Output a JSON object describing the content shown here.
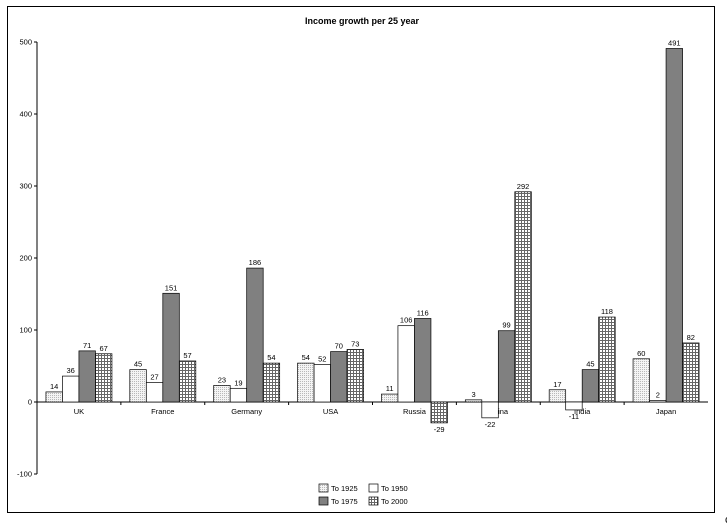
{
  "chart_data": {
    "type": "bar",
    "title": "Income growth per 25 year",
    "categories": [
      "UK",
      "France",
      "Germany",
      "USA",
      "Russia",
      "China",
      "India",
      "Japan"
    ],
    "series": [
      {
        "name": "To 1925",
        "values": [
          14,
          45,
          23,
          54,
          11,
          3,
          17,
          60
        ],
        "color": "#e8e8e8",
        "pattern": "dots"
      },
      {
        "name": "To 1950",
        "values": [
          36,
          27,
          19,
          52,
          106,
          -22,
          -11,
          2
        ],
        "color": "#ffffff",
        "pattern": "none"
      },
      {
        "name": "To 1975",
        "values": [
          71,
          151,
          186,
          70,
          116,
          99,
          45,
          491
        ],
        "color": "#808080",
        "pattern": "solid"
      },
      {
        "name": "To 2000",
        "values": [
          67,
          57,
          54,
          73,
          -29,
          292,
          118,
          82
        ],
        "color": "#9a9a9a",
        "pattern": "grid"
      }
    ],
    "ylim": [
      -100,
      500
    ],
    "yticks": [
      "-100",
      "0",
      "100",
      "200",
      "300",
      "400",
      "500"
    ],
    "xlabel": "",
    "ylabel": "",
    "grid": false,
    "legend_position": "bottom-center"
  },
  "stray_mark": "c"
}
